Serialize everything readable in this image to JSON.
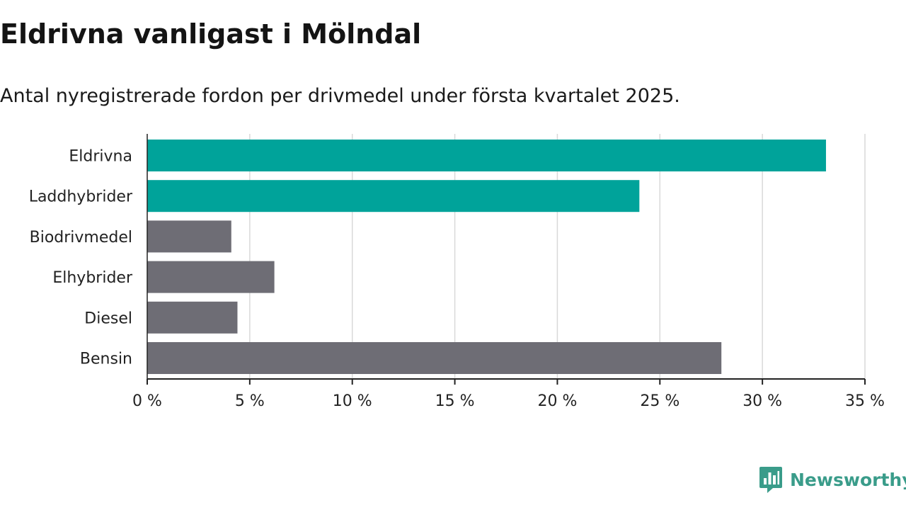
{
  "header": {
    "title": "Eldrivna vanligast i Mölndal",
    "subtitle": "Antal nyregistrerade fordon per drivmedel under första kvartalet 2025."
  },
  "brand": {
    "name": "Newsworthy",
    "icon": "newsworthy-logo-icon",
    "color": "#3a9c8a"
  },
  "colors": {
    "highlight": "#00a39a",
    "default": "#6e6d75",
    "grid": "#d9d9d9",
    "axis": "#222222"
  },
  "chart_data": {
    "type": "bar",
    "orientation": "horizontal",
    "categories": [
      "Eldrivna",
      "Laddhybrider",
      "Biodrivmedel",
      "Elhybrider",
      "Diesel",
      "Bensin"
    ],
    "values": [
      33.1,
      24.0,
      4.1,
      6.2,
      4.4,
      28.0
    ],
    "highlighted": [
      true,
      true,
      false,
      false,
      false,
      false
    ],
    "xlim": [
      0,
      35
    ],
    "xticks": [
      0,
      5,
      10,
      15,
      20,
      25,
      30,
      35
    ],
    "xtick_labels": [
      "0 %",
      "5 %",
      "10 %",
      "15 %",
      "20 %",
      "25 %",
      "30 %",
      "35 %"
    ],
    "grid": true
  }
}
